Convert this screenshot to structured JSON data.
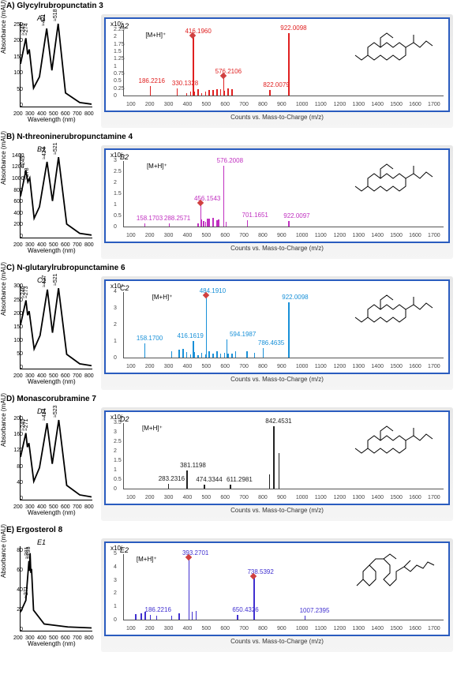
{
  "panels": [
    {
      "title": "A) Glycylrubropunctatin 3",
      "uv": {
        "label": "A1",
        "ylabel": "Absorbance (mAU)",
        "xlabel": "Wavelength (nm)",
        "yticks": [
          0,
          50,
          100,
          150,
          200,
          250
        ],
        "ymax": 260,
        "xticks": [
          200,
          300,
          400,
          500,
          600,
          700,
          800
        ],
        "xmin": 200,
        "xmax": 800,
        "peaks": [
          {
            "x": 245,
            "label": "≈245"
          },
          {
            "x": 274,
            "label": "≈274"
          },
          {
            "x": 421,
            "label": "≈421"
          },
          {
            "x": 518,
            "label": "≈518"
          }
        ],
        "curve": [
          {
            "x": 200,
            "y": 130
          },
          {
            "x": 245,
            "y": 210
          },
          {
            "x": 260,
            "y": 160
          },
          {
            "x": 274,
            "y": 175
          },
          {
            "x": 310,
            "y": 55
          },
          {
            "x": 360,
            "y": 90
          },
          {
            "x": 421,
            "y": 240
          },
          {
            "x": 465,
            "y": 110
          },
          {
            "x": 518,
            "y": 255
          },
          {
            "x": 580,
            "y": 40
          },
          {
            "x": 700,
            "y": 10
          },
          {
            "x": 800,
            "y": 5
          }
        ]
      },
      "ms": {
        "label": "A2",
        "exp": "x10⁵",
        "color": "#e02020",
        "xticks": [
          100,
          200,
          300,
          400,
          500,
          600,
          700,
          800,
          900,
          1000,
          1100,
          1200,
          1300,
          1400,
          1500,
          1600,
          1700
        ],
        "xmin": 50,
        "xmax": 1750,
        "yticks": [
          "0",
          "0.25",
          "0.5",
          "0.75",
          "1",
          "1.25",
          "1.5",
          "1.75",
          "2",
          "2.25"
        ],
        "ymax": 2.4,
        "mh": {
          "x": 416,
          "dx": -60
        },
        "peaks": [
          {
            "x": 186.2216,
            "h": 0.35,
            "label": "186.2216",
            "dx": -14,
            "dy": -2
          },
          {
            "x": 330.1328,
            "h": 0.25,
            "label": "330.1328",
            "dx": -6,
            "dy": -2
          },
          {
            "x": 416.196,
            "h": 2.15,
            "label": "416.1960",
            "dx": -10,
            "dy": -6,
            "diamond": true
          },
          {
            "x": 576.2106,
            "h": 0.7,
            "label": "576.2106",
            "dx": -10,
            "dy": -4,
            "diamond": true
          },
          {
            "x": 822.0079,
            "h": 0.2,
            "label": "822.0079",
            "dx": -8,
            "dy": -2
          },
          {
            "x": 922.0098,
            "h": 2.25,
            "label": "922.0098",
            "dx": -10,
            "dy": -6
          }
        ],
        "noise": [
          380,
          400,
          420,
          440,
          460,
          480,
          500,
          520,
          540,
          560,
          580,
          600,
          620
        ],
        "struct": "fused"
      }
    },
    {
      "title": "B) N-threoninerubropunctamine 4",
      "uv": {
        "label": "B1",
        "ylabel": "Absorbance (mAU)",
        "xlabel": "Wavelength (nm)",
        "yticks": [
          0,
          200,
          400,
          600,
          800,
          1000,
          1200,
          1400
        ],
        "ymax": 1450,
        "xticks": [
          200,
          300,
          400,
          500,
          600,
          700,
          800
        ],
        "xmin": 200,
        "xmax": 800,
        "peaks": [
          {
            "x": 245,
            "label": "≈245"
          },
          {
            "x": 278,
            "label": "≈278"
          },
          {
            "x": 424,
            "label": "≈424"
          },
          {
            "x": 521,
            "label": "≈521"
          }
        ],
        "curve": [
          {
            "x": 200,
            "y": 700
          },
          {
            "x": 245,
            "y": 1150
          },
          {
            "x": 262,
            "y": 950
          },
          {
            "x": 278,
            "y": 1020
          },
          {
            "x": 315,
            "y": 320
          },
          {
            "x": 360,
            "y": 520
          },
          {
            "x": 424,
            "y": 1300
          },
          {
            "x": 470,
            "y": 620
          },
          {
            "x": 521,
            "y": 1380
          },
          {
            "x": 590,
            "y": 220
          },
          {
            "x": 700,
            "y": 60
          },
          {
            "x": 800,
            "y": 30
          }
        ]
      },
      "ms": {
        "label": "B2",
        "exp": "x10⁵",
        "color": "#c030c0",
        "xticks": [
          100,
          200,
          300,
          400,
          500,
          600,
          700,
          800,
          900,
          1000,
          1100,
          1200,
          1300,
          1400,
          1500,
          1600,
          1700
        ],
        "xmin": 50,
        "xmax": 1750,
        "yticks": [
          "0",
          "0.5",
          "1",
          "1.5",
          "2",
          "2.5",
          "3"
        ],
        "ymax": 3.2,
        "mh": {
          "x": 456,
          "dx": -68
        },
        "peaks": [
          {
            "x": 158.1703,
            "h": 0.15,
            "label": "158.1703",
            "dx": -10,
            "dy": -2
          },
          {
            "x": 288.2571,
            "h": 0.15,
            "label": "288.2571",
            "dx": -6,
            "dy": -2
          },
          {
            "x": 456.1543,
            "h": 1.1,
            "label": "456.1543",
            "dx": -8,
            "dy": -4,
            "diamond": true
          },
          {
            "x": 576.2008,
            "h": 2.95,
            "label": "576.2008",
            "dx": -8,
            "dy": -6
          },
          {
            "x": 701.1651,
            "h": 0.3,
            "label": "701.1651",
            "dx": -6,
            "dy": -2
          },
          {
            "x": 922.0097,
            "h": 0.25,
            "label": "922.0097",
            "dx": -6,
            "dy": -2
          }
        ],
        "noise": [
          440,
          460,
          470,
          480,
          490,
          500,
          520,
          540,
          550,
          590
        ],
        "struct": "fused"
      }
    },
    {
      "title": "C) N-glutarylrubropunctamine 6",
      "uv": {
        "label": "C1",
        "ylabel": "Absorbance (mAU)",
        "xlabel": "Wavelength (nm)",
        "yticks": [
          0,
          50,
          100,
          150,
          200,
          250,
          300
        ],
        "ymax": 310,
        "xticks": [
          200,
          300,
          400,
          500,
          600,
          700,
          800
        ],
        "xmin": 200,
        "xmax": 800,
        "peaks": [
          {
            "x": 246,
            "label": "≈246"
          },
          {
            "x": 273,
            "label": "≈273"
          },
          {
            "x": 427,
            "label": "≈427"
          },
          {
            "x": 521,
            "label": "≈521"
          }
        ],
        "curve": [
          {
            "x": 200,
            "y": 160
          },
          {
            "x": 246,
            "y": 250
          },
          {
            "x": 260,
            "y": 195
          },
          {
            "x": 273,
            "y": 210
          },
          {
            "x": 315,
            "y": 70
          },
          {
            "x": 365,
            "y": 120
          },
          {
            "x": 427,
            "y": 290
          },
          {
            "x": 470,
            "y": 130
          },
          {
            "x": 521,
            "y": 295
          },
          {
            "x": 590,
            "y": 50
          },
          {
            "x": 700,
            "y": 15
          },
          {
            "x": 800,
            "y": 8
          }
        ]
      },
      "ms": {
        "label": "C2",
        "exp": "x10⁴",
        "color": "#1890d8",
        "xticks": [
          100,
          200,
          300,
          400,
          500,
          600,
          700,
          800,
          900,
          1000,
          1100,
          1200,
          1300,
          1400,
          1500,
          1600,
          1700
        ],
        "xmin": 50,
        "xmax": 1750,
        "yticks": [
          "0",
          "1",
          "2",
          "3",
          "4"
        ],
        "ymax": 4.3,
        "mh": {
          "x": 484,
          "dx": -68
        },
        "peaks": [
          {
            "x": 158.17,
            "h": 0.9,
            "label": "158.1700",
            "dx": -10,
            "dy": -2
          },
          {
            "x": 416.1619,
            "h": 1.1,
            "label": "416.1619",
            "dx": -20,
            "dy": -2
          },
          {
            "x": 484.191,
            "h": 4.0,
            "label": "484.1910",
            "dx": -8,
            "dy": -6,
            "diamond": true
          },
          {
            "x": 594.1987,
            "h": 1.2,
            "label": "594.1987",
            "dx": 4,
            "dy": -12
          },
          {
            "x": 786.4635,
            "h": 0.6,
            "label": "786.4635",
            "dx": -6,
            "dy": -2
          },
          {
            "x": 922.0098,
            "h": 3.6,
            "label": "922.0098",
            "dx": -8,
            "dy": -6
          }
        ],
        "noise": [
          300,
          340,
          360,
          380,
          400,
          420,
          440,
          460,
          480,
          500,
          520,
          540,
          560,
          580,
          600,
          620,
          640,
          700,
          740
        ],
        "struct": "fused"
      }
    },
    {
      "title": "D) Monascorubramine 7",
      "uv": {
        "label": "D1",
        "ylabel": "Absorbance (mAU)",
        "xlabel": "Wavelength (nm)",
        "yticks": [
          0,
          40,
          80,
          120,
          160,
          200
        ],
        "ymax": 210,
        "xticks": [
          200,
          300,
          400,
          500,
          600,
          700,
          800
        ],
        "xmin": 200,
        "xmax": 800,
        "peaks": [
          {
            "x": 245,
            "label": "≈245"
          },
          {
            "x": 271,
            "label": "≈271"
          },
          {
            "x": 424,
            "label": "≈424"
          },
          {
            "x": 523,
            "label": "≈523"
          }
        ],
        "curve": [
          {
            "x": 200,
            "y": 105
          },
          {
            "x": 245,
            "y": 165
          },
          {
            "x": 258,
            "y": 130
          },
          {
            "x": 271,
            "y": 140
          },
          {
            "x": 312,
            "y": 44
          },
          {
            "x": 360,
            "y": 78
          },
          {
            "x": 424,
            "y": 190
          },
          {
            "x": 468,
            "y": 88
          },
          {
            "x": 523,
            "y": 198
          },
          {
            "x": 590,
            "y": 34
          },
          {
            "x": 700,
            "y": 10
          },
          {
            "x": 800,
            "y": 5
          }
        ]
      },
      "ms": {
        "label": "D2",
        "exp": "x10⁵",
        "color": "#222",
        "xticks": [
          100,
          200,
          300,
          400,
          500,
          600,
          700,
          800,
          900,
          1000,
          1100,
          1200,
          1300,
          1400,
          1500,
          1600,
          1700
        ],
        "xmin": 50,
        "xmax": 1750,
        "yticks": [
          "0",
          "0.5",
          "1",
          "1.5",
          "2",
          "2.5",
          "3",
          "3.5"
        ],
        "ymax": 3.7,
        "mh": {
          "x": 381,
          "dx": -56
        },
        "peaks": [
          {
            "x": 283.2316,
            "h": 0.25,
            "label": "283.2316",
            "dx": -12,
            "dy": -2
          },
          {
            "x": 381.1198,
            "h": 1.0,
            "label": "381.1198",
            "dx": -8,
            "dy": -4
          },
          {
            "x": 474.3344,
            "h": 0.2,
            "label": "474.3344",
            "dx": -10,
            "dy": -2
          },
          {
            "x": 611.2981,
            "h": 0.22,
            "label": "611.2981",
            "dx": -4,
            "dy": -2
          },
          {
            "x": 842.4531,
            "h": 3.5,
            "label": "842.4531",
            "dx": -10,
            "dy": -6
          },
          {
            "x": 870,
            "h": 2.0,
            "label": ""
          },
          {
            "x": 820,
            "h": 0.8,
            "label": ""
          }
        ],
        "noise": [],
        "struct": "fused"
      }
    },
    {
      "title": "E) Ergosterol 8",
      "uv": {
        "label": "E1",
        "ylabel": "Absorbance (mAU)",
        "xlabel": "Wavelength (nm)",
        "yticks": [
          0,
          20,
          40,
          60,
          80
        ],
        "ymax": 85,
        "xticks": [
          200,
          300,
          400,
          500,
          600,
          700,
          800
        ],
        "xmin": 200,
        "xmax": 800,
        "peaks": [
          {
            "x": 271,
            "label": "≈271"
          },
          {
            "x": 281,
            "label": "≈281"
          },
          {
            "x": 293,
            "label": "≈293"
          }
        ],
        "curve": [
          {
            "x": 200,
            "y": 18
          },
          {
            "x": 245,
            "y": 30
          },
          {
            "x": 271,
            "y": 70
          },
          {
            "x": 276,
            "y": 60
          },
          {
            "x": 281,
            "y": 78
          },
          {
            "x": 287,
            "y": 58
          },
          {
            "x": 293,
            "y": 62
          },
          {
            "x": 310,
            "y": 20
          },
          {
            "x": 400,
            "y": 6
          },
          {
            "x": 600,
            "y": 3
          },
          {
            "x": 800,
            "y": 2
          }
        ]
      },
      "ms": {
        "label": "E2",
        "exp": "x10⁵",
        "color": "#4030d0",
        "xticks": [
          100,
          200,
          300,
          400,
          500,
          600,
          700,
          800,
          900,
          1000,
          1100,
          1200,
          1300,
          1400,
          1500,
          1600,
          1700
        ],
        "xmin": 50,
        "xmax": 1750,
        "yticks": [
          "0",
          "1",
          "2",
          "3",
          "4",
          "5"
        ],
        "ymax": 5.3,
        "mh": {
          "x": 393,
          "dx": -66
        },
        "peaks": [
          {
            "x": 186.2216,
            "h": 0.4,
            "label": "186.2216",
            "dx": -6,
            "dy": -2
          },
          {
            "x": 393.2701,
            "h": 4.9,
            "label": "393.2701",
            "dx": -8,
            "dy": -6,
            "diamond": true
          },
          {
            "x": 650.4326,
            "h": 0.35,
            "label": "650.4326",
            "dx": -6,
            "dy": -2
          },
          {
            "x": 738.5392,
            "h": 3.4,
            "label": "738.5392",
            "dx": -8,
            "dy": -6,
            "diamond": true
          },
          {
            "x": 1007.2395,
            "h": 0.3,
            "label": "1007.2395",
            "dx": -6,
            "dy": -2
          }
        ],
        "noise": [
          110,
          140,
          160,
          220,
          300,
          340,
          410,
          430
        ],
        "struct": "sterol"
      }
    }
  ],
  "ms_xlabel": "Counts vs. Mass-to-Charge (m/z)",
  "mh_label": "[M+H]⁺"
}
